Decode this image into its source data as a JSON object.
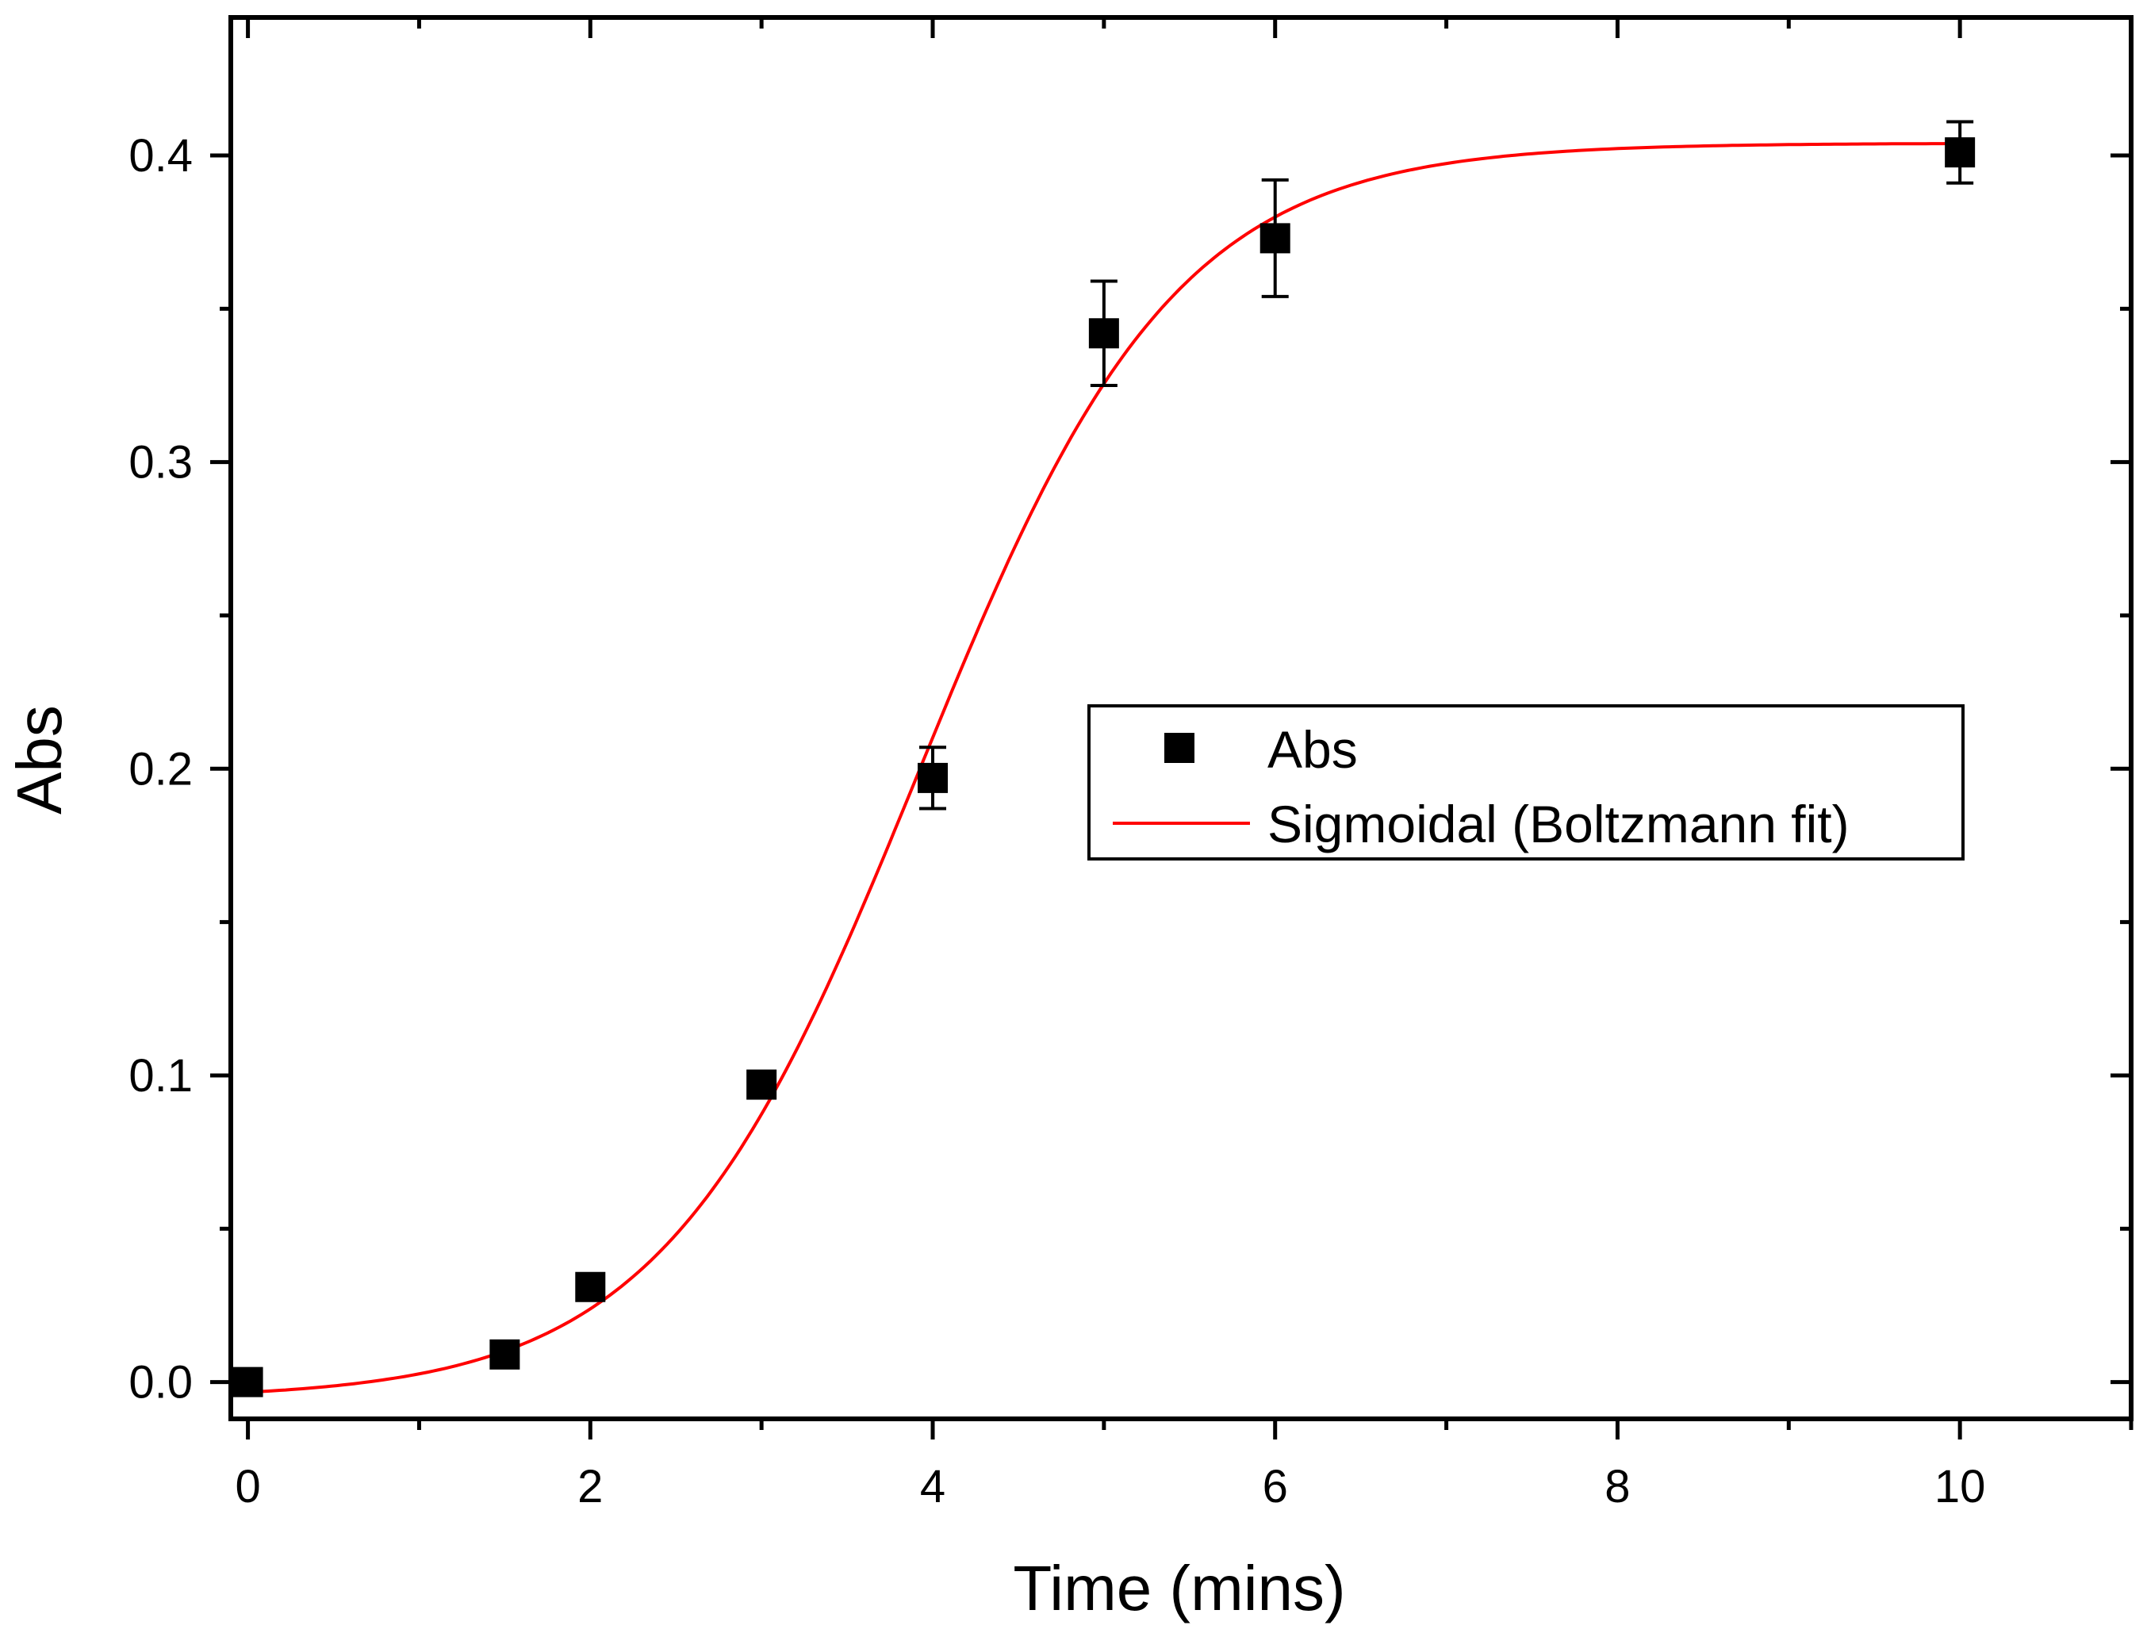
{
  "chart_data": {
    "type": "scatter",
    "xlabel": "Time (mins)",
    "ylabel": "Abs",
    "xlim": [
      -0.1,
      11
    ],
    "ylim": [
      -0.012,
      0.445
    ],
    "xticks": [
      0,
      2,
      4,
      6,
      8,
      10
    ],
    "xtick_labels": [
      "0",
      "2",
      "4",
      "6",
      "8",
      "10"
    ],
    "xminor": [
      1,
      3,
      5,
      7,
      9,
      11
    ],
    "yticks": [
      0.0,
      0.1,
      0.2,
      0.3,
      0.4
    ],
    "ytick_labels": [
      "0.0",
      "0.1",
      "0.2",
      "0.3",
      "0.4"
    ],
    "yminor": [
      0.05,
      0.15,
      0.25,
      0.35
    ],
    "grid": false,
    "legend_position": "right-middle",
    "series": [
      {
        "name": "Abs",
        "kind": "scatter",
        "marker": "square",
        "color": "#000000",
        "x": [
          0,
          1.5,
          2,
          3,
          4,
          5,
          6,
          10
        ],
        "y": [
          0.0,
          0.009,
          0.031,
          0.097,
          0.197,
          0.342,
          0.373,
          0.401
        ],
        "error": [
          0,
          0,
          0,
          0,
          0.01,
          0.017,
          0.019,
          0.01
        ]
      },
      {
        "name": "Sigmoidal (Boltzmann fit)",
        "kind": "line",
        "color": "#ff0000",
        "model": "boltzmann",
        "A1": -0.0055,
        "A2": 0.404,
        "x0": 3.92,
        "dx": 0.75,
        "x_range": [
          0.02,
          10
        ]
      }
    ]
  }
}
